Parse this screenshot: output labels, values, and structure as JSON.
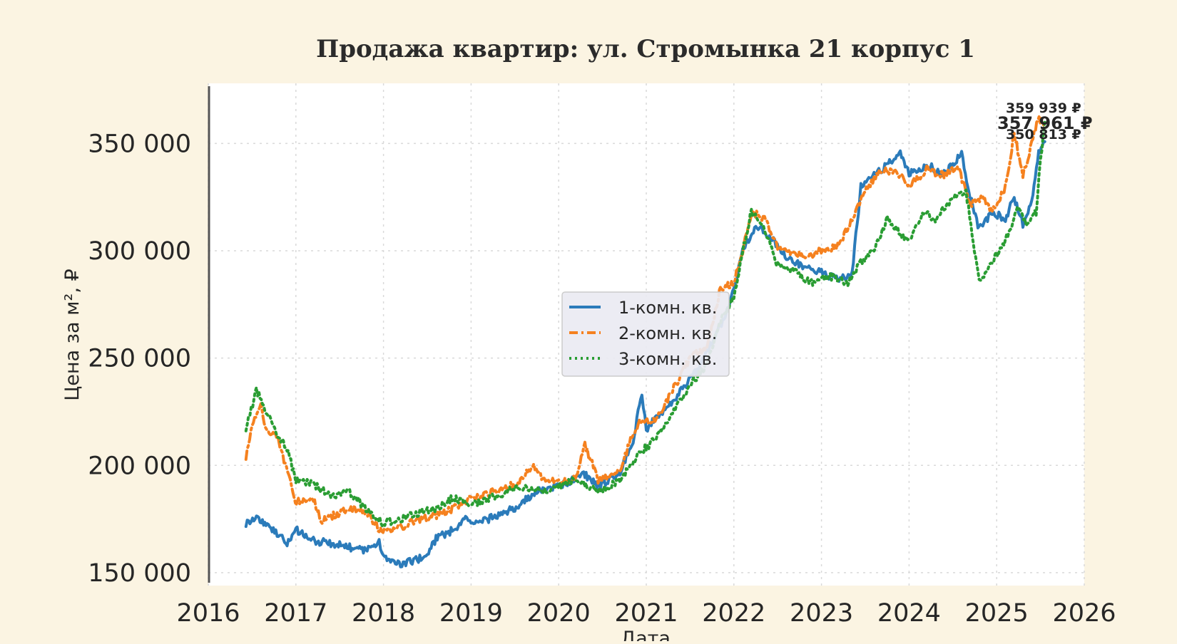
{
  "chart_data": {
    "type": "line",
    "title": "Продажа квартир: ул. Стромынка 21 корпус 1",
    "xlabel": "Дата",
    "ylabel": "Цена за м², ₽",
    "xlim": [
      2016,
      2026
    ],
    "ylim": [
      144000,
      378000
    ],
    "x_ticks": [
      "2016",
      "2017",
      "2018",
      "2019",
      "2020",
      "2021",
      "2022",
      "2023",
      "2024",
      "2025",
      "2026"
    ],
    "y_ticks": [
      {
        "value": 150000,
        "label": "150 000"
      },
      {
        "value": 200000,
        "label": "200 000"
      },
      {
        "value": 250000,
        "label": "250 000"
      },
      {
        "value": 300000,
        "label": "300 000"
      },
      {
        "value": 350000,
        "label": "350 000"
      }
    ],
    "grid": true,
    "legend_position": "center",
    "series": [
      {
        "name": "1-комн. кв.",
        "color": "#2b7bba",
        "style": "solid",
        "end_label": "350 813 ₽",
        "points": [
          [
            2016.43,
            173000
          ],
          [
            2016.55,
            176000
          ],
          [
            2016.7,
            171000
          ],
          [
            2016.8,
            168000
          ],
          [
            2016.9,
            163000
          ],
          [
            2017.0,
            170000
          ],
          [
            2017.2,
            165000
          ],
          [
            2017.5,
            163000
          ],
          [
            2017.8,
            160000
          ],
          [
            2017.95,
            165000
          ],
          [
            2018.0,
            157000
          ],
          [
            2018.15,
            154000
          ],
          [
            2018.3,
            155000
          ],
          [
            2018.5,
            158000
          ],
          [
            2018.6,
            166000
          ],
          [
            2018.8,
            170000
          ],
          [
            2018.95,
            176000
          ],
          [
            2019.0,
            172000
          ],
          [
            2019.2,
            175000
          ],
          [
            2019.5,
            180000
          ],
          [
            2019.75,
            188000
          ],
          [
            2020.0,
            190000
          ],
          [
            2020.3,
            196000
          ],
          [
            2020.45,
            190000
          ],
          [
            2020.7,
            197000
          ],
          [
            2020.85,
            212000
          ],
          [
            2020.95,
            234000
          ],
          [
            2021.0,
            217000
          ],
          [
            2021.3,
            230000
          ],
          [
            2021.6,
            245000
          ],
          [
            2021.9,
            270000
          ],
          [
            2022.0,
            282000
          ],
          [
            2022.1,
            300000
          ],
          [
            2022.25,
            312000
          ],
          [
            2022.45,
            305000
          ],
          [
            2022.6,
            297000
          ],
          [
            2022.8,
            292000
          ],
          [
            2023.0,
            290000
          ],
          [
            2023.2,
            286000
          ],
          [
            2023.35,
            290000
          ],
          [
            2023.45,
            330000
          ],
          [
            2023.6,
            335000
          ],
          [
            2023.75,
            340000
          ],
          [
            2023.9,
            345000
          ],
          [
            2024.0,
            336000
          ],
          [
            2024.2,
            340000
          ],
          [
            2024.4,
            336000
          ],
          [
            2024.6,
            345000
          ],
          [
            2024.7,
            325000
          ],
          [
            2024.8,
            310000
          ],
          [
            2024.95,
            318000
          ],
          [
            2025.1,
            315000
          ],
          [
            2025.2,
            325000
          ],
          [
            2025.3,
            312000
          ],
          [
            2025.4,
            322000
          ],
          [
            2025.48,
            345000
          ],
          [
            2025.55,
            350813
          ]
        ]
      },
      {
        "name": "2-комн. кв.",
        "color": "#f5811f",
        "style": "dashdot",
        "end_label": "357 961 ₽",
        "points": [
          [
            2016.43,
            204000
          ],
          [
            2016.5,
            219000
          ],
          [
            2016.6,
            229000
          ],
          [
            2016.65,
            217000
          ],
          [
            2016.8,
            213000
          ],
          [
            2016.85,
            204000
          ],
          [
            2016.95,
            190000
          ],
          [
            2017.0,
            183000
          ],
          [
            2017.2,
            184000
          ],
          [
            2017.3,
            174000
          ],
          [
            2017.5,
            178000
          ],
          [
            2017.7,
            180000
          ],
          [
            2017.85,
            176000
          ],
          [
            2017.95,
            170000
          ],
          [
            2018.1,
            170000
          ],
          [
            2018.25,
            172000
          ],
          [
            2018.4,
            175000
          ],
          [
            2018.55,
            176000
          ],
          [
            2018.8,
            180000
          ],
          [
            2019.0,
            185000
          ],
          [
            2019.3,
            188000
          ],
          [
            2019.55,
            192000
          ],
          [
            2019.7,
            200000
          ],
          [
            2019.85,
            193000
          ],
          [
            2020.0,
            192000
          ],
          [
            2020.2,
            194000
          ],
          [
            2020.3,
            210000
          ],
          [
            2020.45,
            193000
          ],
          [
            2020.7,
            198000
          ],
          [
            2020.85,
            215000
          ],
          [
            2020.95,
            222000
          ],
          [
            2021.1,
            220000
          ],
          [
            2021.3,
            235000
          ],
          [
            2021.5,
            250000
          ],
          [
            2021.7,
            255000
          ],
          [
            2021.85,
            283000
          ],
          [
            2022.0,
            285000
          ],
          [
            2022.1,
            300000
          ],
          [
            2022.2,
            318000
          ],
          [
            2022.35,
            315000
          ],
          [
            2022.5,
            302000
          ],
          [
            2022.8,
            297000
          ],
          [
            2023.0,
            300000
          ],
          [
            2023.2,
            302000
          ],
          [
            2023.35,
            315000
          ],
          [
            2023.5,
            328000
          ],
          [
            2023.7,
            338000
          ],
          [
            2023.9,
            335000
          ],
          [
            2024.0,
            330000
          ],
          [
            2024.2,
            338000
          ],
          [
            2024.4,
            335000
          ],
          [
            2024.55,
            340000
          ],
          [
            2024.7,
            322000
          ],
          [
            2024.85,
            325000
          ],
          [
            2024.95,
            318000
          ],
          [
            2025.1,
            330000
          ],
          [
            2025.2,
            355000
          ],
          [
            2025.3,
            335000
          ],
          [
            2025.4,
            350000
          ],
          [
            2025.47,
            362000
          ],
          [
            2025.55,
            357961
          ]
        ]
      },
      {
        "name": "3-комн. кв.",
        "color": "#2a9d33",
        "style": "dotted",
        "end_label": "359 939 ₽",
        "points": [
          [
            2016.43,
            217000
          ],
          [
            2016.55,
            235000
          ],
          [
            2016.7,
            222000
          ],
          [
            2016.8,
            213000
          ],
          [
            2016.9,
            208000
          ],
          [
            2017.0,
            193000
          ],
          [
            2017.2,
            191000
          ],
          [
            2017.4,
            186000
          ],
          [
            2017.6,
            188000
          ],
          [
            2017.8,
            180000
          ],
          [
            2018.0,
            173000
          ],
          [
            2018.2,
            175000
          ],
          [
            2018.4,
            178000
          ],
          [
            2018.6,
            180000
          ],
          [
            2018.8,
            185000
          ],
          [
            2019.0,
            182000
          ],
          [
            2019.3,
            186000
          ],
          [
            2019.55,
            190000
          ],
          [
            2019.8,
            188000
          ],
          [
            2020.0,
            190000
          ],
          [
            2020.2,
            194000
          ],
          [
            2020.45,
            188000
          ],
          [
            2020.7,
            193000
          ],
          [
            2020.9,
            205000
          ],
          [
            2021.1,
            212000
          ],
          [
            2021.3,
            225000
          ],
          [
            2021.5,
            237000
          ],
          [
            2021.7,
            248000
          ],
          [
            2021.85,
            268000
          ],
          [
            2022.0,
            278000
          ],
          [
            2022.1,
            300000
          ],
          [
            2022.2,
            318000
          ],
          [
            2022.35,
            310000
          ],
          [
            2022.5,
            293000
          ],
          [
            2022.7,
            290000
          ],
          [
            2022.9,
            285000
          ],
          [
            2023.1,
            288000
          ],
          [
            2023.3,
            285000
          ],
          [
            2023.45,
            295000
          ],
          [
            2023.6,
            300000
          ],
          [
            2023.75,
            315000
          ],
          [
            2023.9,
            308000
          ],
          [
            2024.0,
            305000
          ],
          [
            2024.15,
            318000
          ],
          [
            2024.3,
            315000
          ],
          [
            2024.5,
            325000
          ],
          [
            2024.65,
            328000
          ],
          [
            2024.72,
            308000
          ],
          [
            2024.8,
            285000
          ],
          [
            2024.95,
            295000
          ],
          [
            2025.1,
            305000
          ],
          [
            2025.25,
            320000
          ],
          [
            2025.35,
            312000
          ],
          [
            2025.45,
            318000
          ],
          [
            2025.5,
            342000
          ],
          [
            2025.55,
            359939
          ]
        ]
      }
    ]
  }
}
